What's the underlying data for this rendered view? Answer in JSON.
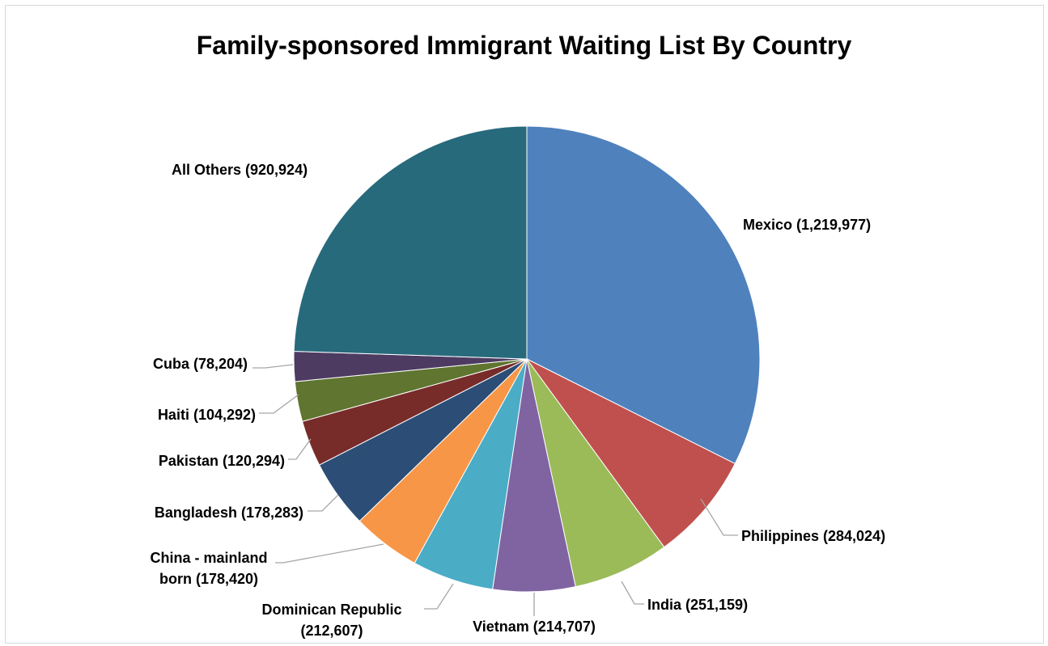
{
  "chart_data": {
    "type": "pie",
    "title": "Family-sponsored Immigrant Waiting List By Country",
    "slices": [
      {
        "name": "Mexico",
        "value": 1219977,
        "label": "Mexico (1,219,977)",
        "color": "#4F81BD"
      },
      {
        "name": "Philippines",
        "value": 284024,
        "label": "Philippines (284,024)",
        "color": "#C0504D"
      },
      {
        "name": "India",
        "value": 251159,
        "label": "India (251,159)",
        "color": "#9BBB59"
      },
      {
        "name": "Vietnam",
        "value": 214707,
        "label": "Vietnam (214,707)",
        "color": "#8064A2"
      },
      {
        "name": "Dominican Republic",
        "value": 212607,
        "label": "Dominican Republic (212,607)",
        "color": "#4BACC6"
      },
      {
        "name": "China - mainland born",
        "value": 178420,
        "label": "China - mainland born (178,420)",
        "color": "#F79646"
      },
      {
        "name": "Bangladesh",
        "value": 178283,
        "label": "Bangladesh (178,283)",
        "color": "#2C4D75"
      },
      {
        "name": "Pakistan",
        "value": 120294,
        "label": "Pakistan (120,294)",
        "color": "#772C2A"
      },
      {
        "name": "Haiti",
        "value": 104292,
        "label": "Haiti (104,292)",
        "color": "#5F7530"
      },
      {
        "name": "Cuba",
        "value": 78204,
        "label": "Cuba (78,204)",
        "color": "#4D3B62"
      },
      {
        "name": "All Others",
        "value": 920924,
        "label": "All Others (920,924)",
        "color": "#276A7C"
      }
    ]
  }
}
